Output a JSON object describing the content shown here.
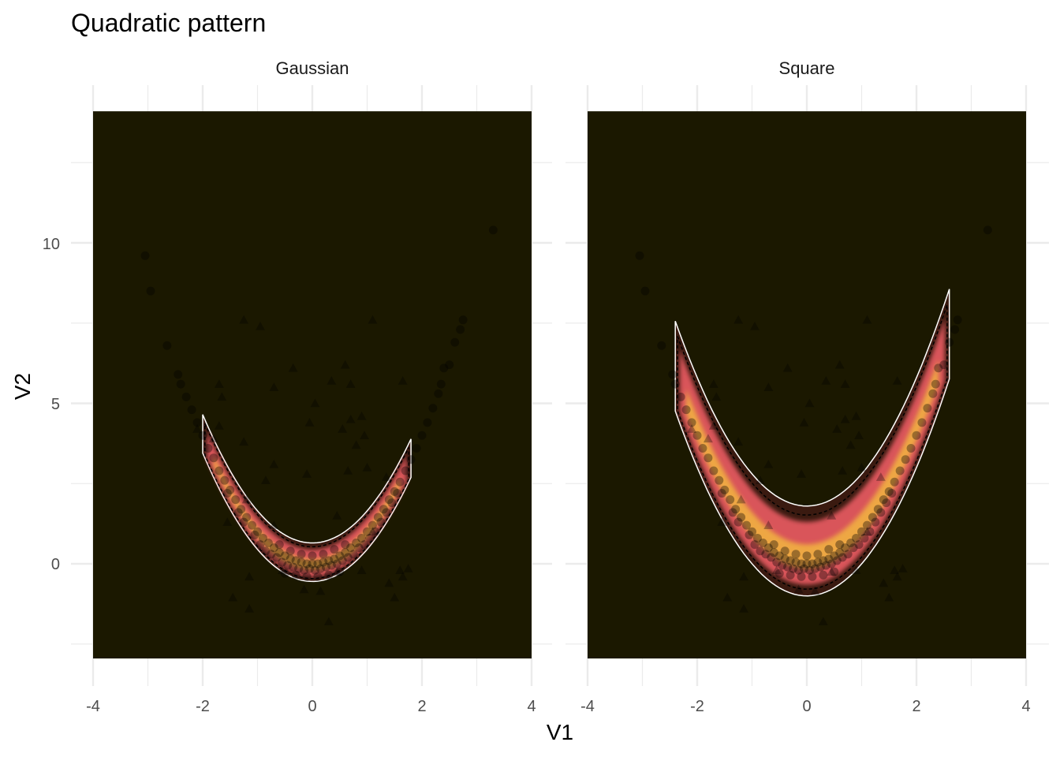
{
  "chart_data": {
    "type": "contour-scatter",
    "title": "Quadratic pattern",
    "xlabel": "V1",
    "ylabel": "V2",
    "xlim": [
      -4,
      4
    ],
    "ylim": [
      -3,
      14
    ],
    "x_ticks": [
      -4,
      -2,
      0,
      2,
      4
    ],
    "x_tick_labels": [
      "-4",
      "-2",
      "0",
      "2",
      "4"
    ],
    "y_ticks": [
      0,
      5,
      10
    ],
    "y_tick_labels": [
      "0",
      "5",
      "10"
    ],
    "raster_extent": {
      "x": [
        -4,
        4
      ],
      "y": [
        -2.95,
        14.1
      ]
    },
    "colors": {
      "background": "#1b1800",
      "density_low": "#3a1a10",
      "density_mid": "#d9555a",
      "density_high": "#f2b640",
      "points": "#000000",
      "grid": "#ebebeb"
    },
    "legend": "none",
    "panels": [
      {
        "label": "Gaussian",
        "band": {
          "curve_a": 1.0,
          "curve_c": 0.0,
          "x_range": [
            -2.0,
            1.8
          ],
          "inner_offset": -0.55,
          "outer_offset": 0.65
        }
      },
      {
        "label": "Square",
        "band": {
          "curve_a": 1.0,
          "curve_c": 0.0,
          "x_range": [
            -2.4,
            2.6
          ],
          "inner_offset": -1.0,
          "outer_offset": 1.8
        }
      }
    ],
    "series": [
      {
        "name": "circles",
        "shape": "circle",
        "points": [
          [
            -3.05,
            9.6
          ],
          [
            -2.95,
            8.5
          ],
          [
            -2.65,
            6.8
          ],
          [
            -2.45,
            5.9
          ],
          [
            -2.4,
            5.6
          ],
          [
            -2.3,
            5.2
          ],
          [
            -2.2,
            4.8
          ],
          [
            -2.1,
            4.4
          ],
          [
            -2.0,
            4.0
          ],
          [
            -1.9,
            3.6
          ],
          [
            -1.8,
            3.3
          ],
          [
            -1.7,
            2.9
          ],
          [
            -1.6,
            2.6
          ],
          [
            -1.5,
            2.3
          ],
          [
            -1.4,
            2.0
          ],
          [
            -1.3,
            1.7
          ],
          [
            -1.2,
            1.45
          ],
          [
            -1.1,
            1.2
          ],
          [
            -1.0,
            1.0
          ],
          [
            -0.9,
            0.8
          ],
          [
            -0.8,
            0.65
          ],
          [
            -0.7,
            0.5
          ],
          [
            -0.6,
            0.35
          ],
          [
            -0.5,
            0.25
          ],
          [
            -0.4,
            0.15
          ],
          [
            -0.3,
            0.1
          ],
          [
            -0.2,
            0.05
          ],
          [
            -0.1,
            0.0
          ],
          [
            0.0,
            0.0
          ],
          [
            0.1,
            0.0
          ],
          [
            0.2,
            0.05
          ],
          [
            0.3,
            0.1
          ],
          [
            0.4,
            0.15
          ],
          [
            0.5,
            0.25
          ],
          [
            0.6,
            0.35
          ],
          [
            0.7,
            0.5
          ],
          [
            0.8,
            0.65
          ],
          [
            0.9,
            0.8
          ],
          [
            1.0,
            1.0
          ],
          [
            1.1,
            1.2
          ],
          [
            1.2,
            1.45
          ],
          [
            1.3,
            1.7
          ],
          [
            1.4,
            2.0
          ],
          [
            1.5,
            2.25
          ],
          [
            1.6,
            2.55
          ],
          [
            1.7,
            2.9
          ],
          [
            1.8,
            3.25
          ],
          [
            1.9,
            3.6
          ],
          [
            2.0,
            4.0
          ],
          [
            2.1,
            4.4
          ],
          [
            2.2,
            4.85
          ],
          [
            2.3,
            5.3
          ],
          [
            2.35,
            5.6
          ],
          [
            2.4,
            6.1
          ],
          [
            2.5,
            6.2
          ],
          [
            2.6,
            6.9
          ],
          [
            2.7,
            7.3
          ],
          [
            2.75,
            7.6
          ],
          [
            3.3,
            10.4
          ],
          [
            -1.55,
            2.2
          ],
          [
            -1.35,
            1.6
          ],
          [
            -1.25,
            1.3
          ],
          [
            -1.05,
            0.9
          ],
          [
            -0.95,
            0.6
          ],
          [
            -0.85,
            0.4
          ],
          [
            -0.75,
            0.3
          ],
          [
            -0.65,
            0.2
          ],
          [
            -0.55,
            0.05
          ],
          [
            -0.45,
            -0.05
          ],
          [
            -0.35,
            -0.1
          ],
          [
            -0.25,
            -0.15
          ],
          [
            -0.15,
            -0.2
          ],
          [
            -0.05,
            -0.15
          ],
          [
            0.05,
            -0.2
          ],
          [
            0.15,
            -0.15
          ],
          [
            0.25,
            -0.1
          ],
          [
            0.35,
            -0.05
          ],
          [
            0.45,
            0.0
          ],
          [
            0.55,
            0.1
          ],
          [
            0.65,
            0.2
          ],
          [
            0.75,
            0.3
          ],
          [
            0.85,
            0.5
          ],
          [
            0.95,
            0.6
          ],
          [
            1.05,
            0.8
          ],
          [
            1.15,
            1.0
          ],
          [
            1.25,
            1.3
          ],
          [
            1.35,
            1.6
          ],
          [
            1.45,
            1.9
          ],
          [
            1.55,
            2.2
          ],
          [
            -0.6,
            0.6
          ],
          [
            -0.4,
            0.4
          ],
          [
            -0.2,
            0.3
          ],
          [
            0.0,
            0.25
          ],
          [
            0.2,
            0.3
          ],
          [
            0.4,
            0.45
          ],
          [
            0.6,
            0.6
          ],
          [
            -0.5,
            -0.3
          ],
          [
            -0.3,
            -0.35
          ],
          [
            -0.1,
            -0.4
          ],
          [
            0.1,
            -0.4
          ],
          [
            0.3,
            -0.35
          ],
          [
            0.5,
            -0.25
          ]
        ]
      },
      {
        "name": "triangles",
        "shape": "triangle",
        "points": [
          [
            -1.25,
            7.6
          ],
          [
            -0.95,
            7.4
          ],
          [
            1.1,
            7.6
          ],
          [
            -0.35,
            6.1
          ],
          [
            0.6,
            6.2
          ],
          [
            0.35,
            5.7
          ],
          [
            -0.7,
            5.5
          ],
          [
            0.7,
            5.6
          ],
          [
            1.65,
            5.7
          ],
          [
            -1.7,
            5.6
          ],
          [
            -1.65,
            5.2
          ],
          [
            0.05,
            5.0
          ],
          [
            -2.1,
            4.2
          ],
          [
            -1.8,
            3.9
          ],
          [
            -1.7,
            4.3
          ],
          [
            -0.05,
            4.4
          ],
          [
            0.7,
            4.5
          ],
          [
            0.9,
            4.6
          ],
          [
            0.55,
            4.2
          ],
          [
            0.95,
            4.0
          ],
          [
            -1.25,
            3.8
          ],
          [
            0.8,
            3.7
          ],
          [
            -0.7,
            3.1
          ],
          [
            1.0,
            3.0
          ],
          [
            -0.85,
            2.6
          ],
          [
            -0.1,
            2.8
          ],
          [
            0.65,
            2.9
          ],
          [
            1.35,
            2.7
          ],
          [
            -1.2,
            2.0
          ],
          [
            -1.55,
            1.3
          ],
          [
            0.45,
            1.5
          ],
          [
            -0.7,
            1.2
          ],
          [
            1.1,
            1.0
          ],
          [
            0.9,
            -0.2
          ],
          [
            1.6,
            -0.2
          ],
          [
            1.75,
            -0.15
          ],
          [
            1.65,
            -0.4
          ],
          [
            -1.15,
            -0.4
          ],
          [
            1.4,
            -0.6
          ],
          [
            -0.15,
            -0.8
          ],
          [
            0.15,
            -0.85
          ],
          [
            -1.45,
            -1.05
          ],
          [
            -1.15,
            -1.4
          ],
          [
            1.5,
            -1.05
          ],
          [
            0.3,
            -1.8
          ],
          [
            -0.55,
            -0.2
          ],
          [
            0.45,
            -0.25
          ]
        ]
      }
    ]
  }
}
